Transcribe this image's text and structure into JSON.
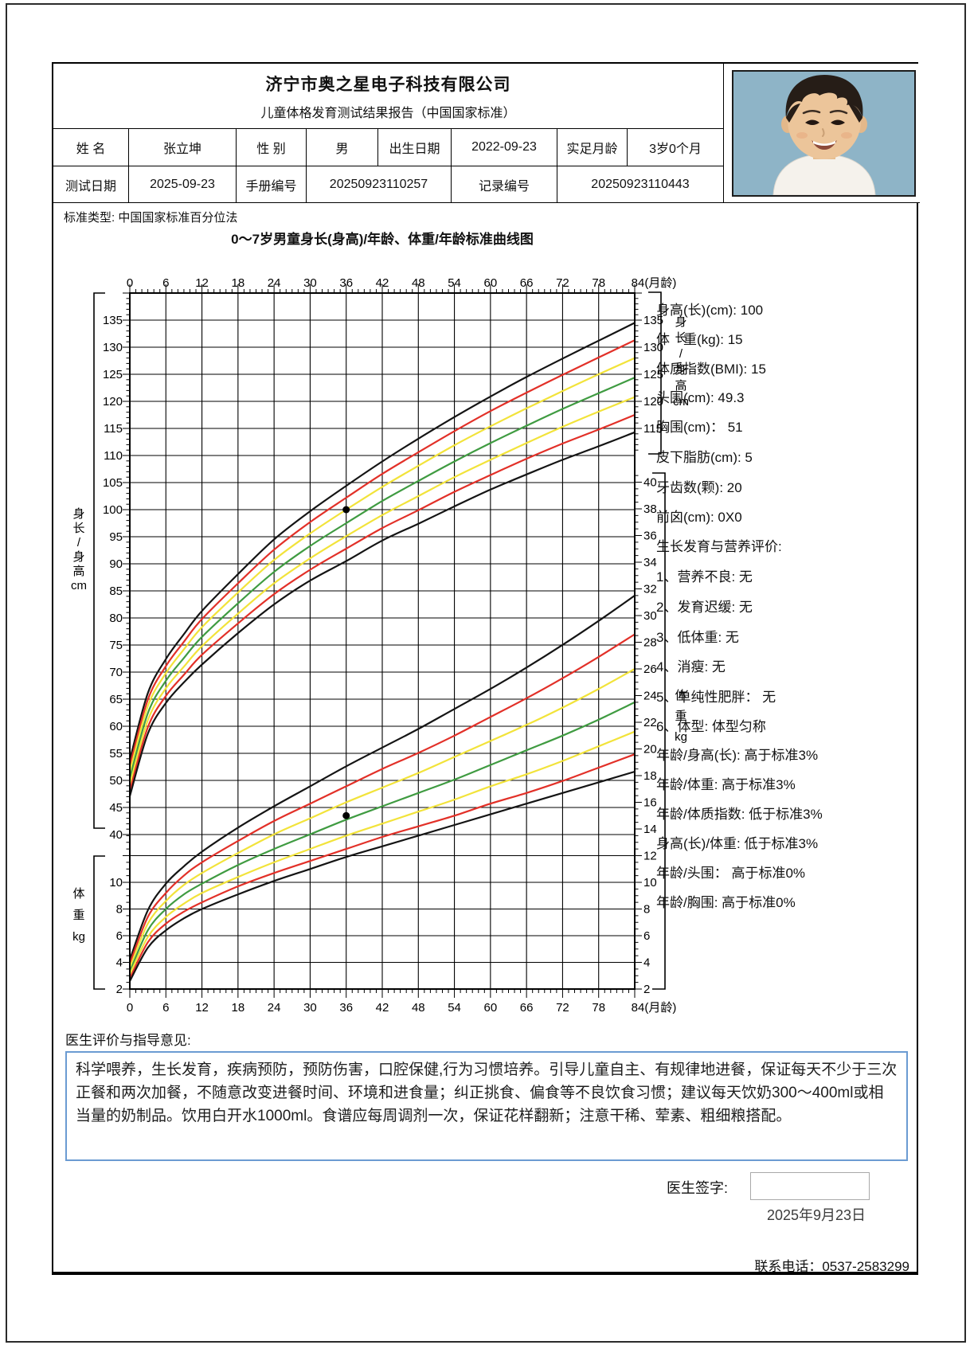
{
  "header": {
    "company": "济宁市奥之星电子科技有限公司",
    "subtitle": "儿童体格发育测试结果报告（中国国家标准）",
    "row1": [
      {
        "label": "姓 名",
        "value": "张立坤"
      },
      {
        "label": "性 别",
        "value": "男"
      },
      {
        "label": "出生日期",
        "value": "2022-09-23"
      },
      {
        "label": "实足月龄",
        "value": "3岁0个月"
      }
    ],
    "row2": [
      {
        "label": "测试日期",
        "value": "2025-09-23"
      },
      {
        "label": "手册编号",
        "value": "20250923110257"
      },
      {
        "label": "记录编号",
        "value": "20250923110443"
      }
    ]
  },
  "standard_type": "标准类型: 中国国家标准百分位法",
  "chart_data": {
    "type": "line",
    "title": "0～7岁男童身长(身高)/年龄、体重/年龄标准曲线图",
    "x_axis": {
      "min": 0,
      "max": 84,
      "step": 6,
      "end_label": "84(月龄)"
    },
    "height_axis": {
      "label_chars": [
        "身",
        "长",
        "/",
        "身",
        "高",
        "cm"
      ],
      "grid_min": 40,
      "grid_max": 140,
      "grid_step": 5,
      "left_label_min": 40,
      "left_label_max": 135,
      "right_labels": [
        135,
        130,
        125,
        120,
        115
      ]
    },
    "weight_axis": {
      "label_chars": [
        "体",
        "重",
        "kg"
      ],
      "grid_min": 2,
      "grid_max": 12,
      "grid_step": 2,
      "left_labels": [
        10,
        8,
        6,
        4,
        2
      ],
      "right_label_min": 2,
      "right_label_max": 40,
      "right_label_step": 2
    },
    "colors": {
      "black": "#141414",
      "red": "#e23028",
      "yellow": "#f2e33a",
      "green": "#3f9b41"
    },
    "months": [
      0,
      3,
      6,
      9,
      12,
      18,
      24,
      30,
      36,
      42,
      48,
      54,
      60,
      66,
      72,
      78,
      84
    ],
    "height_series": [
      {
        "name": "P97",
        "color_key": "black",
        "values": [
          53.8,
          66.1,
          72.4,
          77.0,
          81.3,
          88.1,
          94.5,
          99.7,
          104.4,
          108.9,
          113.1,
          117.1,
          120.9,
          124.5,
          127.9,
          131.2,
          134.5
        ]
      },
      {
        "name": "P90",
        "color_key": "red",
        "values": [
          52.7,
          64.9,
          71.1,
          75.6,
          79.8,
          86.4,
          92.6,
          97.7,
          102.2,
          106.6,
          110.6,
          114.5,
          118.2,
          121.6,
          124.9,
          128.1,
          131.3
        ]
      },
      {
        "name": "P75",
        "color_key": "yellow",
        "values": [
          51.6,
          63.7,
          69.8,
          74.2,
          78.3,
          84.7,
          90.7,
          95.6,
          100.0,
          104.2,
          108.1,
          111.9,
          115.4,
          118.7,
          121.9,
          125.0,
          128.0
        ]
      },
      {
        "name": "P50",
        "color_key": "green",
        "values": [
          50.4,
          62.4,
          68.4,
          72.6,
          76.5,
          82.7,
          88.5,
          93.3,
          97.5,
          101.6,
          105.3,
          108.9,
          112.3,
          115.5,
          118.6,
          121.5,
          124.4
        ]
      },
      {
        "name": "P25",
        "color_key": "yellow",
        "values": [
          49.2,
          61.1,
          67.0,
          71.0,
          74.8,
          80.8,
          86.4,
          91.0,
          95.1,
          99.0,
          102.5,
          106.0,
          109.2,
          112.3,
          115.3,
          118.1,
          120.8
        ]
      },
      {
        "name": "P10",
        "color_key": "red",
        "values": [
          48.1,
          59.8,
          65.6,
          69.5,
          73.2,
          79.0,
          84.4,
          88.9,
          92.8,
          96.6,
          99.9,
          103.3,
          106.4,
          109.4,
          112.2,
          114.8,
          117.5
        ]
      },
      {
        "name": "P3",
        "color_key": "black",
        "values": [
          47.1,
          58.6,
          64.3,
          68.1,
          71.4,
          77.2,
          82.5,
          86.9,
          90.5,
          94.3,
          97.4,
          100.6,
          103.7,
          106.5,
          109.2,
          111.7,
          114.3
        ]
      }
    ],
    "weight_series": [
      {
        "name": "P97",
        "color_key": "black",
        "values": [
          4.2,
          7.9,
          9.9,
          11.2,
          12.3,
          14.1,
          15.7,
          17.2,
          18.7,
          20.1,
          21.5,
          23.0,
          24.5,
          26.1,
          27.8,
          29.6,
          31.5
        ]
      },
      {
        "name": "P90",
        "color_key": "red",
        "values": [
          3.9,
          7.4,
          9.2,
          10.5,
          11.5,
          13.1,
          14.6,
          15.9,
          17.2,
          18.5,
          19.7,
          21.0,
          22.4,
          23.8,
          25.3,
          26.9,
          28.6
        ]
      },
      {
        "name": "P75",
        "color_key": "yellow",
        "values": [
          3.6,
          6.9,
          8.6,
          9.8,
          10.7,
          12.2,
          13.6,
          14.8,
          16.0,
          17.1,
          18.2,
          19.4,
          20.6,
          21.8,
          23.1,
          24.5,
          26.0
        ]
      },
      {
        "name": "P50",
        "color_key": "green",
        "values": [
          3.3,
          6.4,
          8.0,
          9.1,
          9.9,
          11.3,
          12.5,
          13.6,
          14.7,
          15.7,
          16.7,
          17.7,
          18.8,
          19.9,
          21.0,
          22.2,
          23.5
        ]
      },
      {
        "name": "P25",
        "color_key": "yellow",
        "values": [
          3.1,
          5.9,
          7.4,
          8.4,
          9.2,
          10.4,
          11.5,
          12.5,
          13.5,
          14.4,
          15.3,
          16.2,
          17.2,
          18.1,
          19.1,
          20.2,
          21.3
        ]
      },
      {
        "name": "P10",
        "color_key": "red",
        "values": [
          2.8,
          5.5,
          6.9,
          7.8,
          8.5,
          9.7,
          10.7,
          11.6,
          12.5,
          13.4,
          14.2,
          15.0,
          15.9,
          16.7,
          17.6,
          18.6,
          19.6
        ]
      },
      {
        "name": "P3",
        "color_key": "black",
        "values": [
          2.6,
          5.1,
          6.4,
          7.3,
          8.0,
          9.1,
          10.1,
          11.0,
          11.9,
          12.7,
          13.5,
          14.3,
          15.1,
          15.9,
          16.7,
          17.5,
          18.3
        ]
      }
    ],
    "patient_points": [
      {
        "axis": "height",
        "month": 36,
        "value": 100
      },
      {
        "axis": "weight",
        "month": 36,
        "value": 15
      }
    ]
  },
  "panel": {
    "lines": [
      "身高(长)(cm): 100",
      "体　重(kg): 15",
      "体质指数(BMI): 15",
      "头围(cm): 49.3",
      "胸围(cm)： 51",
      "皮下脂肪(cm): 5",
      "牙齿数(颗): 20",
      "前囟(cm): 0X0",
      "生长发育与营养评价:",
      "1、营养不良: 无",
      "2、发育迟缓: 无",
      "3、低体重: 无",
      "4、消瘦: 无",
      "5、单纯性肥胖： 无",
      "6、体型: 体型匀称",
      "年龄/身高(长): 高于标准3%",
      "年龄/体重: 高于标准3%",
      "年龄/体质指数: 低于标准3%",
      "身高(长)/体重: 低于标准3%",
      "年龄/头围： 高于标准0%",
      "年龄/胸围: 高于标准0%"
    ]
  },
  "doctor": {
    "section_title": "医生评价与指导意见:",
    "advice": "科学喂养，生长发育，疾病预防，预防伤害，口腔保健,行为习惯培养。引导儿童自主、有规律地进餐，保证每天不少于三次正餐和两次加餐，不随意改变进餐时间、环境和进食量；纠正挑食、偏食等不良饮食习惯；建议每天饮奶300～400ml或相当量的奶制品。饮用白开水1000ml。食谱应每周调剂一次，保证花样翻新；注意干稀、荤素、粗细粮搭配。",
    "sign_label": "医生签字:",
    "date": "2025年9月23日",
    "phone": "联系电话：0537-2583299"
  }
}
